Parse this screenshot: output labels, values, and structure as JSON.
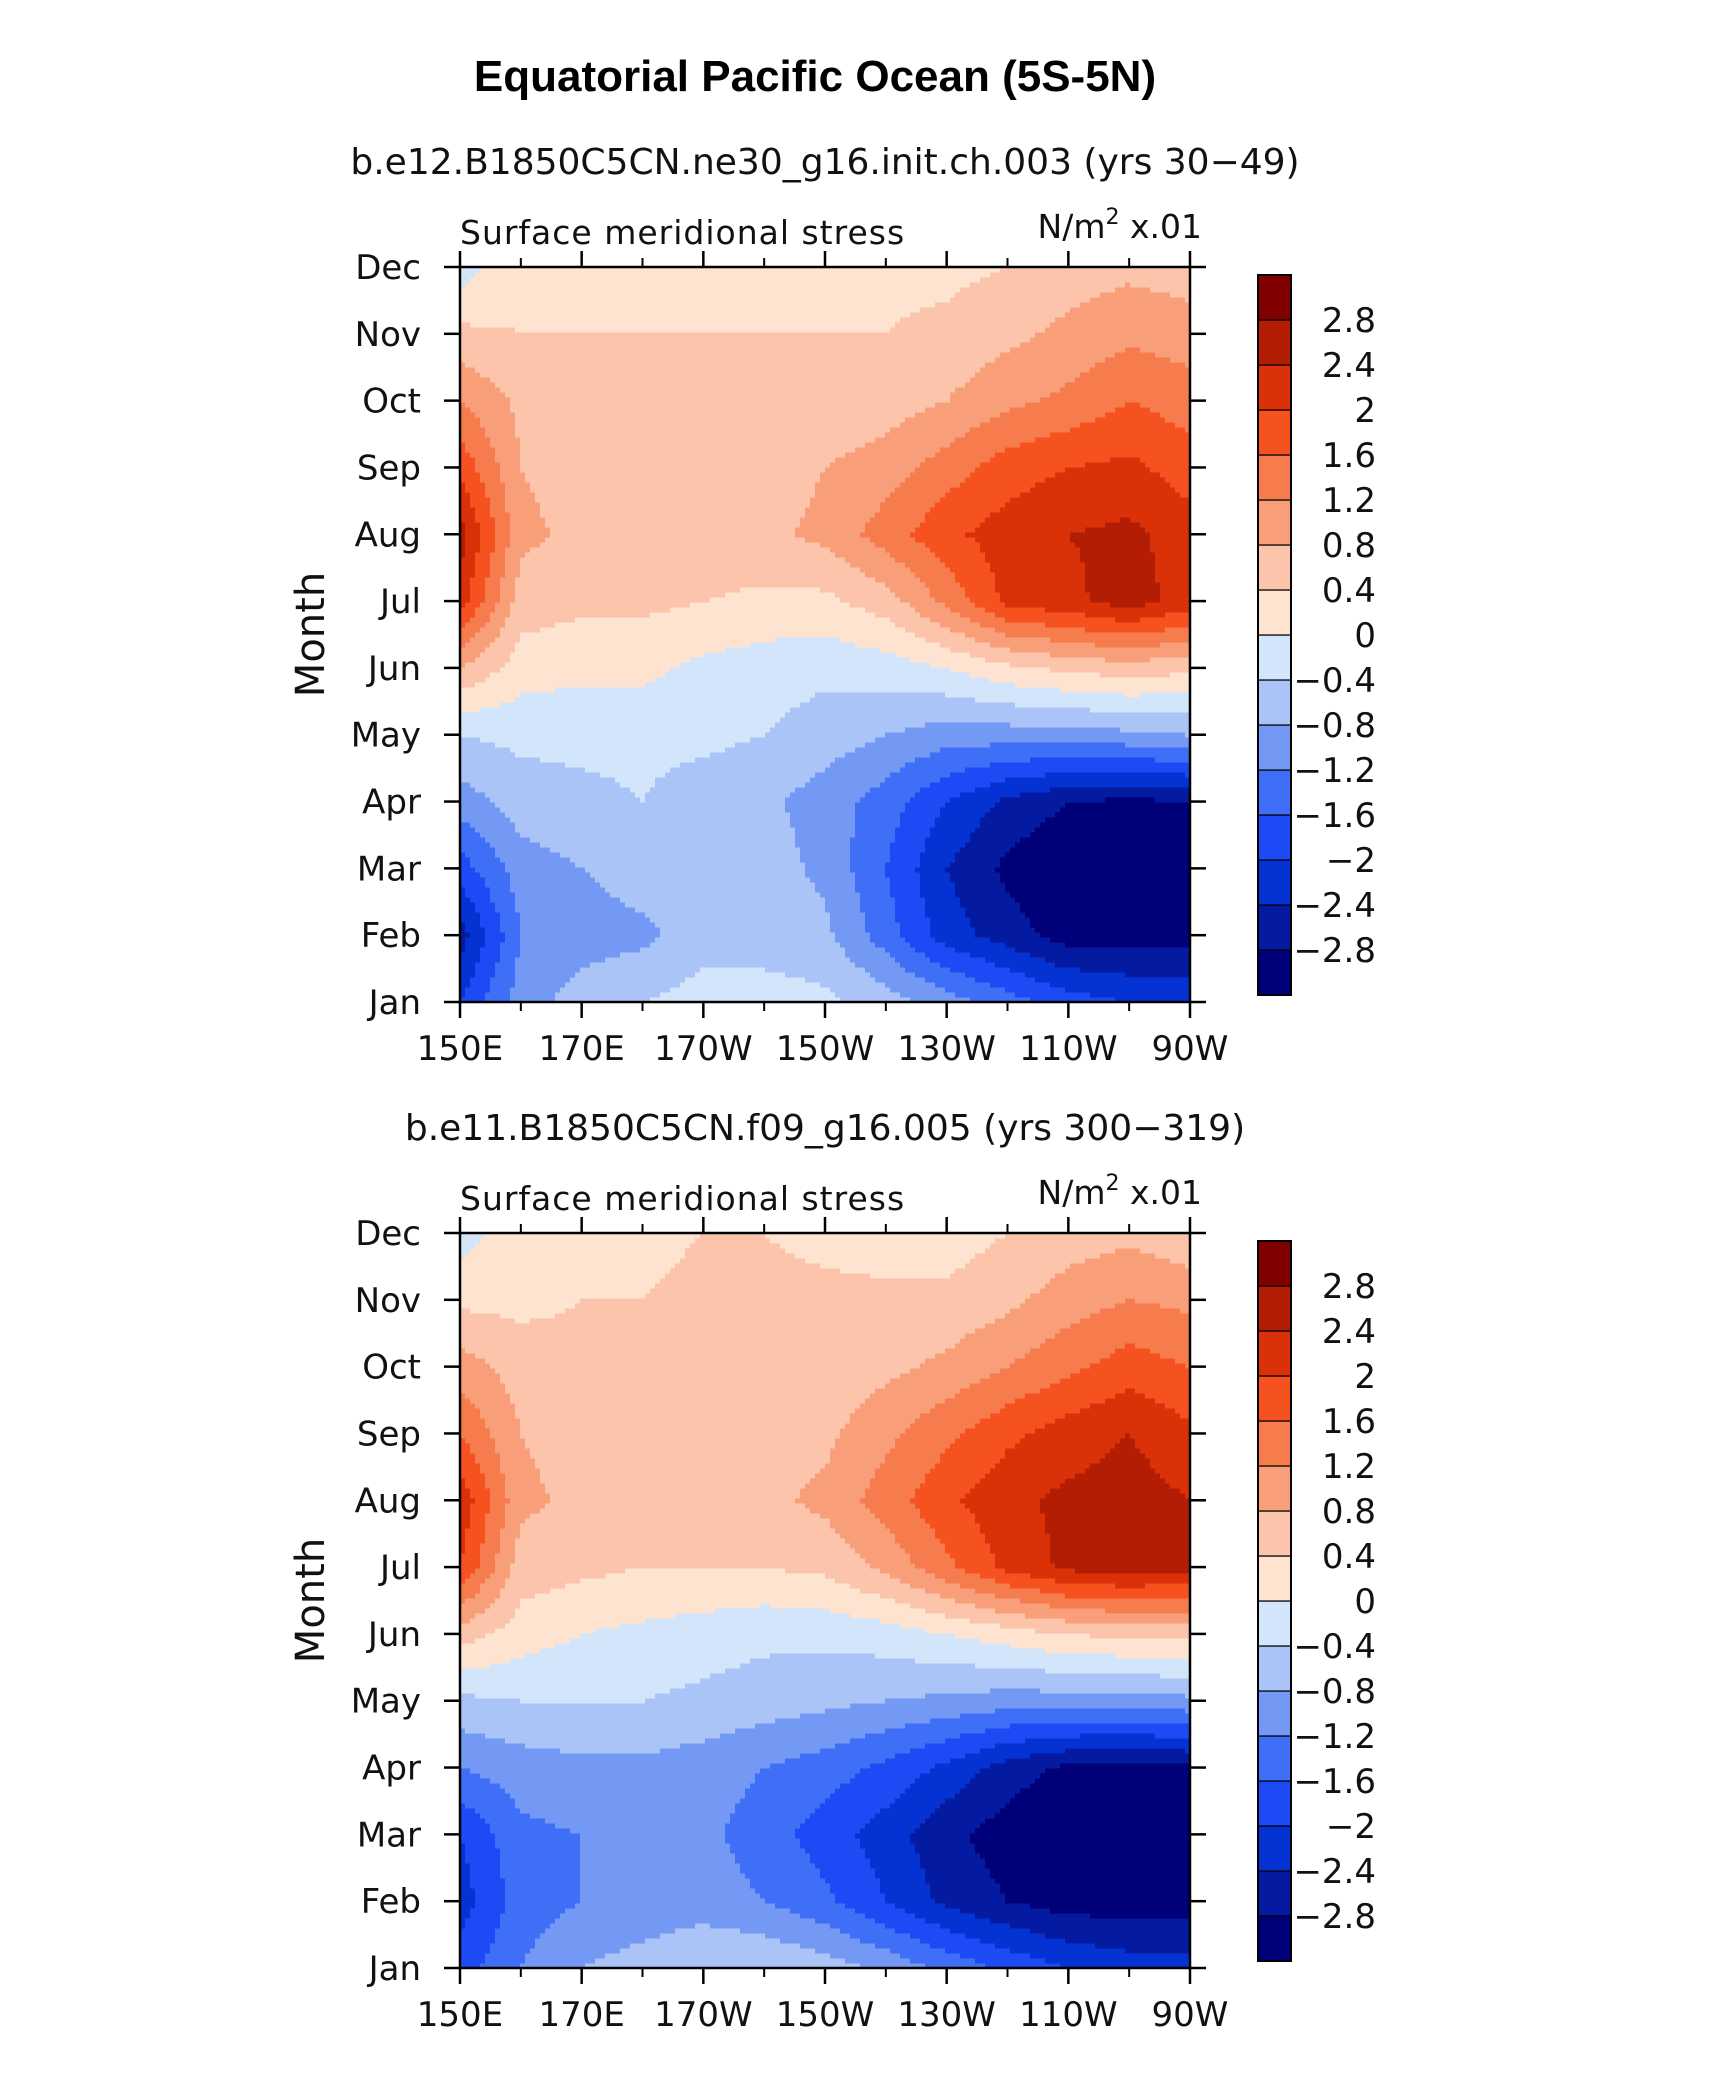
{
  "figure": {
    "title": "Equatorial Pacific Ocean (5S-5N)"
  },
  "panels": [
    {
      "case_label": "b.e12.B1850C5CN.ne30_g16.init.ch.003 (yrs 30−49)",
      "left_label": "Surface meridional stress",
      "units_prefix": "N/m",
      "units_sup": "2",
      "units_suffix": " x.01"
    },
    {
      "case_label": "b.e11.B1850C5CN.f09_g16.005 (yrs 300−319)",
      "left_label": "Surface meridional stress",
      "units_prefix": "N/m",
      "units_sup": "2",
      "units_suffix": " x.01"
    }
  ],
  "colorbar": {
    "colors": [
      "#000078",
      "#041aa0",
      "#0532d2",
      "#1c4bf5",
      "#3f6ff7",
      "#7499f5",
      "#aac4f8",
      "#d3e5fb",
      "#fde3d0",
      "#fcc4aa",
      "#f89f7a",
      "#f67b4d",
      "#f5521f",
      "#da3108",
      "#b31d03",
      "#800000"
    ],
    "labels": [
      "−2.8",
      "−2.4",
      "−2",
      "−1.6",
      "−1.2",
      "−0.8",
      "−0.4",
      "0",
      "0.4",
      "0.8",
      "1.2",
      "1.6",
      "2",
      "2.4",
      "2.8"
    ]
  },
  "chart_data": [
    {
      "type": "heatmap",
      "title": "b.e12.B1850C5CN.ne30_g16.init.ch.003 (yrs 30−49)",
      "subtitle": "Surface meridional stress",
      "units": "N/m² x.01",
      "ylabel": "Month",
      "xlabel": "",
      "x_ticks": [
        "150E",
        "170E",
        "170W",
        "150W",
        "130W",
        "110W",
        "90W"
      ],
      "y_ticks": [
        "Jan",
        "Feb",
        "Mar",
        "Apr",
        "May",
        "Jun",
        "Jul",
        "Aug",
        "Sep",
        "Oct",
        "Nov",
        "Dec"
      ],
      "levels": [
        -2.8,
        -2.4,
        -2,
        -1.6,
        -1.2,
        -0.8,
        -0.4,
        0,
        0.4,
        0.8,
        1.2,
        1.6,
        2,
        2.4,
        2.8
      ],
      "longitudes": [
        150,
        160,
        170,
        180,
        190,
        200,
        210,
        220,
        230,
        240,
        250,
        260,
        270
      ],
      "months": [
        "Jan",
        "Feb",
        "Mar",
        "Apr",
        "May",
        "Jun",
        "Jul",
        "Aug",
        "Sep",
        "Oct",
        "Nov",
        "Dec"
      ],
      "values": [
        [
          -2.0,
          -1.0,
          -0.6,
          -0.4,
          -0.2,
          -0.2,
          -0.3,
          -0.6,
          -1.0,
          -1.4,
          -1.8,
          -2.0,
          -2.0
        ],
        [
          -2.6,
          -1.2,
          -1.0,
          -0.9,
          -0.6,
          -0.6,
          -0.7,
          -1.4,
          -2.2,
          -2.6,
          -3.0,
          -3.0,
          -3.0
        ],
        [
          -1.8,
          -1.0,
          -0.8,
          -0.6,
          -0.5,
          -0.6,
          -0.9,
          -1.6,
          -2.4,
          -2.9,
          -3.2,
          -3.2,
          -3.2
        ],
        [
          -1.0,
          -0.6,
          -0.5,
          -0.4,
          -0.6,
          -0.7,
          -1.0,
          -1.4,
          -2.0,
          -2.5,
          -2.8,
          -2.9,
          -2.8
        ],
        [
          -0.4,
          -0.3,
          -0.3,
          -0.3,
          -0.3,
          -0.4,
          -0.6,
          -0.8,
          -1.0,
          -1.0,
          -1.0,
          -0.9,
          -0.8
        ],
        [
          0.8,
          0.2,
          0.1,
          0.1,
          -0.1,
          -0.2,
          -0.3,
          -0.2,
          0.0,
          0.3,
          0.5,
          0.6,
          0.5
        ],
        [
          2.2,
          0.6,
          0.5,
          0.5,
          0.4,
          0.3,
          0.3,
          0.6,
          1.3,
          2.1,
          2.3,
          2.6,
          2.2
        ],
        [
          2.6,
          0.9,
          0.7,
          0.7,
          0.7,
          0.7,
          0.9,
          1.4,
          1.9,
          2.2,
          2.4,
          2.5,
          2.2
        ],
        [
          1.9,
          0.8,
          0.6,
          0.6,
          0.6,
          0.6,
          0.8,
          1.0,
          1.4,
          1.8,
          2.0,
          2.1,
          1.8
        ],
        [
          1.2,
          0.7,
          0.6,
          0.5,
          0.5,
          0.5,
          0.5,
          0.6,
          0.8,
          1.1,
          1.3,
          1.6,
          1.4
        ],
        [
          0.5,
          0.4,
          0.4,
          0.4,
          0.4,
          0.4,
          0.4,
          0.4,
          0.5,
          0.7,
          0.9,
          1.1,
          1.0
        ],
        [
          -0.2,
          0.3,
          0.3,
          0.3,
          0.3,
          0.3,
          0.3,
          0.3,
          0.3,
          0.4,
          0.6,
          0.7,
          0.6
        ]
      ]
    },
    {
      "type": "heatmap",
      "title": "b.e11.B1850C5CN.f09_g16.005 (yrs 300−319)",
      "subtitle": "Surface meridional stress",
      "units": "N/m² x.01",
      "ylabel": "Month",
      "xlabel": "",
      "x_ticks": [
        "150E",
        "170E",
        "170W",
        "150W",
        "130W",
        "110W",
        "90W"
      ],
      "y_ticks": [
        "Jan",
        "Feb",
        "Mar",
        "Apr",
        "May",
        "Jun",
        "Jul",
        "Aug",
        "Sep",
        "Oct",
        "Nov",
        "Dec"
      ],
      "levels": [
        -2.8,
        -2.4,
        -2,
        -1.6,
        -1.2,
        -0.8,
        -0.4,
        0,
        0.4,
        0.8,
        1.2,
        1.6,
        2,
        2.4,
        2.8
      ],
      "longitudes": [
        150,
        160,
        170,
        180,
        190,
        200,
        210,
        220,
        230,
        240,
        250,
        260,
        270
      ],
      "months": [
        "Jan",
        "Feb",
        "Mar",
        "Apr",
        "May",
        "Jun",
        "Jul",
        "Aug",
        "Sep",
        "Oct",
        "Nov",
        "Dec"
      ],
      "values": [
        [
          -1.8,
          -1.2,
          -0.8,
          -0.6,
          -0.4,
          -0.4,
          -0.6,
          -0.9,
          -1.3,
          -1.7,
          -2.0,
          -2.2,
          -2.2
        ],
        [
          -2.2,
          -1.4,
          -1.2,
          -1.1,
          -1.0,
          -1.2,
          -1.5,
          -2.0,
          -2.5,
          -2.8,
          -3.0,
          -3.0,
          -3.0
        ],
        [
          -2.0,
          -1.3,
          -1.2,
          -1.1,
          -1.1,
          -1.4,
          -1.8,
          -2.2,
          -2.7,
          -3.0,
          -3.2,
          -3.2,
          -3.2
        ],
        [
          -1.2,
          -1.0,
          -0.9,
          -0.9,
          -1.0,
          -1.2,
          -1.4,
          -1.7,
          -2.1,
          -2.6,
          -2.9,
          -3.0,
          -2.9
        ],
        [
          -0.5,
          -0.4,
          -0.4,
          -0.4,
          -0.5,
          -0.6,
          -0.7,
          -0.8,
          -0.9,
          -1.0,
          -1.0,
          -1.0,
          -0.9
        ],
        [
          0.6,
          0.2,
          0.0,
          -0.1,
          -0.2,
          -0.3,
          -0.3,
          -0.2,
          0.0,
          0.2,
          0.4,
          0.5,
          0.5
        ],
        [
          2.0,
          0.6,
          0.5,
          0.4,
          0.4,
          0.4,
          0.5,
          0.9,
          1.5,
          2.1,
          2.5,
          2.6,
          2.5
        ],
        [
          2.3,
          0.9,
          0.7,
          0.7,
          0.7,
          0.7,
          0.9,
          1.4,
          1.9,
          2.3,
          2.5,
          2.6,
          2.4
        ],
        [
          1.6,
          0.8,
          0.6,
          0.6,
          0.6,
          0.6,
          0.7,
          1.1,
          1.5,
          1.9,
          2.2,
          2.4,
          2.1
        ],
        [
          1.0,
          0.6,
          0.5,
          0.5,
          0.5,
          0.5,
          0.5,
          0.7,
          0.9,
          1.2,
          1.5,
          1.8,
          1.6
        ],
        [
          0.3,
          0.3,
          0.4,
          0.4,
          0.5,
          0.5,
          0.5,
          0.5,
          0.5,
          0.7,
          1.0,
          1.2,
          1.1
        ],
        [
          -0.2,
          0.3,
          0.3,
          0.3,
          0.4,
          0.4,
          0.3,
          0.2,
          0.2,
          0.4,
          0.6,
          0.7,
          0.5
        ]
      ]
    }
  ]
}
